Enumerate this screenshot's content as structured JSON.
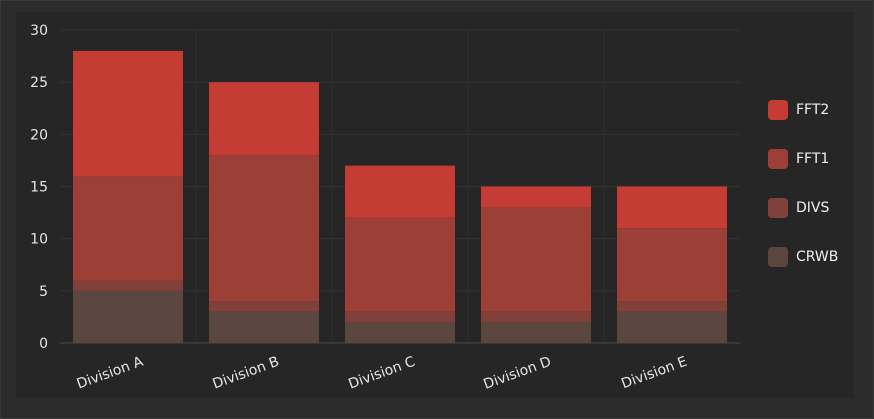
{
  "chart_data": {
    "type": "bar",
    "stacked": true,
    "title": "",
    "xlabel": "",
    "ylabel": "",
    "ylim": [
      0,
      30
    ],
    "yticks": [
      0,
      5,
      10,
      15,
      20,
      25,
      30
    ],
    "grid": true,
    "legend_position": "right",
    "categories": [
      "Division A",
      "Division B",
      "Division C",
      "Division D",
      "Division E"
    ],
    "series": [
      {
        "name": "CRWB",
        "color": "#5a463f",
        "values": [
          5,
          3,
          2,
          2,
          3
        ]
      },
      {
        "name": "DIVS",
        "color": "#81413a",
        "values": [
          1,
          1,
          1,
          1,
          1
        ]
      },
      {
        "name": "FFT1",
        "color": "#9c3f37",
        "values": [
          10,
          14,
          9,
          10,
          7
        ]
      },
      {
        "name": "FFT2",
        "color": "#c43c33",
        "values": [
          12,
          7,
          5,
          2,
          4
        ]
      }
    ]
  },
  "legend": {
    "items": [
      {
        "label": "FFT2",
        "color": "#c43c33"
      },
      {
        "label": "FFT1",
        "color": "#9c3f37"
      },
      {
        "label": "DIVS",
        "color": "#81413a"
      },
      {
        "label": "CRWB",
        "color": "#5a463f"
      }
    ]
  }
}
